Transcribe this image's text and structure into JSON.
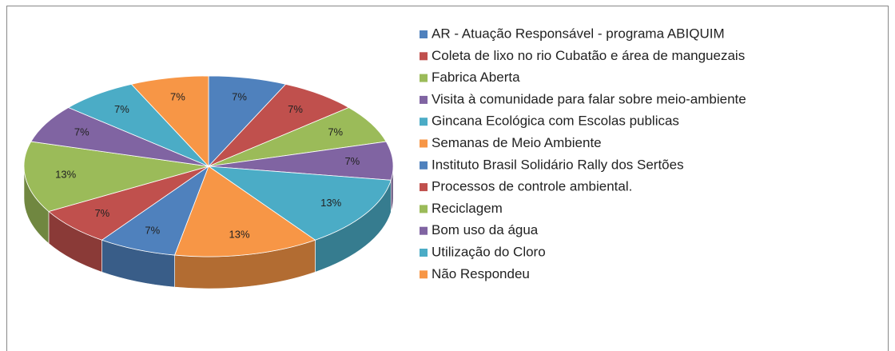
{
  "chart_data": {
    "type": "pie",
    "categories": [
      "AR - Atuação Responsável - programa ABIQUIM",
      "Coleta de lixo no rio Cubatão e área de manguezais",
      "Fabrica Aberta",
      "Visita à comunidade para falar sobre meio-ambiente",
      "Gincana Ecológica com Escolas publicas",
      "Semanas de Meio Ambiente",
      "Instituto Brasil Solidário Rally dos Sertões",
      "Processos de controle ambiental.",
      "Reciclagem",
      "Bom uso da água",
      "Utilização do Cloro",
      "Não Respondeu"
    ],
    "values": [
      7,
      7,
      7,
      7,
      13,
      13,
      7,
      7,
      13,
      7,
      7,
      7
    ],
    "value_labels": [
      "7%",
      "7%",
      "7%",
      "7%",
      "13%",
      "13%",
      "7%",
      "7%",
      "13%",
      "7%",
      "7%",
      "7%"
    ],
    "colors": [
      "#4F81BD",
      "#C0504D",
      "#9BBB59",
      "#8064A2",
      "#4BACC6",
      "#F79646",
      "#4F81BD",
      "#C0504D",
      "#9BBB59",
      "#8064A2",
      "#4BACC6",
      "#F79646"
    ],
    "legend": "right"
  }
}
